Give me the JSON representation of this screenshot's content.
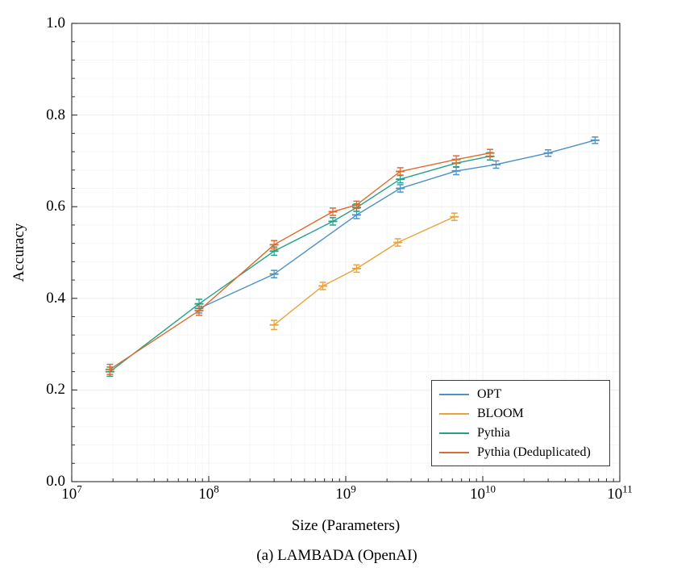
{
  "figure": {
    "ylabel": "Accuracy",
    "xlabel": "Size (Parameters)",
    "caption": "(a) LAMBADA (OpenAI)"
  },
  "chart_data": {
    "type": "line",
    "title": "",
    "xlabel": "Size (Parameters)",
    "ylabel": "Accuracy",
    "x_scale": "log",
    "xlim": [
      10000000,
      100000000000
    ],
    "ylim": [
      0.0,
      1.0
    ],
    "grid": "faint major+minor gridlines, ticks inward on left and bottom",
    "y_tick_labels": [
      "0.0",
      "0.2",
      "0.4",
      "0.6",
      "0.8",
      "1.0"
    ],
    "y_minor_step": 0.04,
    "x_ticks": [
      {
        "base": "10",
        "exp": "7"
      },
      {
        "base": "10",
        "exp": "8"
      },
      {
        "base": "10",
        "exp": "9"
      },
      {
        "base": "10",
        "exp": "10"
      },
      {
        "base": "10",
        "exp": "11"
      }
    ],
    "legend_position": "lower right",
    "series": [
      {
        "name": "OPT",
        "color": "#4c92c6",
        "points": [
          {
            "x": 85000000,
            "y": 0.378,
            "err": 0.01
          },
          {
            "x": 300000000,
            "y": 0.453,
            "err": 0.008
          },
          {
            "x": 1200000000,
            "y": 0.582,
            "err": 0.008
          },
          {
            "x": 2500000000,
            "y": 0.64,
            "err": 0.008
          },
          {
            "x": 6400000000,
            "y": 0.678,
            "err": 0.008
          },
          {
            "x": 12500000000,
            "y": 0.692,
            "err": 0.008
          },
          {
            "x": 30000000000,
            "y": 0.717,
            "err": 0.007
          },
          {
            "x": 66000000000,
            "y": 0.745,
            "err": 0.007
          }
        ]
      },
      {
        "name": "BLOOM",
        "color": "#e9a33b",
        "points": [
          {
            "x": 300000000,
            "y": 0.342,
            "err": 0.01
          },
          {
            "x": 680000000,
            "y": 0.427,
            "err": 0.008
          },
          {
            "x": 1200000000,
            "y": 0.465,
            "err": 0.008
          },
          {
            "x": 2400000000,
            "y": 0.522,
            "err": 0.008
          },
          {
            "x": 6200000000,
            "y": 0.578,
            "err": 0.008
          }
        ]
      },
      {
        "name": "Pythia",
        "color": "#23a185",
        "points": [
          {
            "x": 19000000,
            "y": 0.24,
            "err": 0.01
          },
          {
            "x": 85000000,
            "y": 0.388,
            "err": 0.01
          },
          {
            "x": 300000000,
            "y": 0.503,
            "err": 0.009
          },
          {
            "x": 805000000,
            "y": 0.568,
            "err": 0.008
          },
          {
            "x": 1200000000,
            "y": 0.598,
            "err": 0.008
          },
          {
            "x": 2500000000,
            "y": 0.66,
            "err": 0.008
          },
          {
            "x": 6400000000,
            "y": 0.695,
            "err": 0.008
          },
          {
            "x": 11300000000,
            "y": 0.71,
            "err": 0.008
          }
        ]
      },
      {
        "name": "Pythia (Deduplicated)",
        "color": "#dd6a2e",
        "points": [
          {
            "x": 19000000,
            "y": 0.245,
            "err": 0.011
          },
          {
            "x": 85000000,
            "y": 0.373,
            "err": 0.01
          },
          {
            "x": 300000000,
            "y": 0.517,
            "err": 0.009
          },
          {
            "x": 805000000,
            "y": 0.589,
            "err": 0.008
          },
          {
            "x": 1200000000,
            "y": 0.604,
            "err": 0.008
          },
          {
            "x": 2500000000,
            "y": 0.677,
            "err": 0.008
          },
          {
            "x": 6400000000,
            "y": 0.703,
            "err": 0.008
          },
          {
            "x": 11300000000,
            "y": 0.717,
            "err": 0.008
          }
        ]
      }
    ]
  }
}
